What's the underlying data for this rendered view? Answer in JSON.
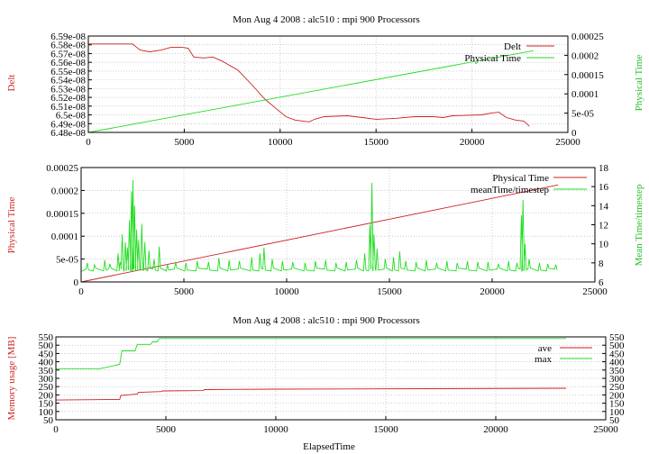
{
  "colors": {
    "red": "#cc2222",
    "green": "#22dd22",
    "grid": "#b0b0b0"
  },
  "chart_data": [
    {
      "type": "line",
      "title": "Mon Aug 4 2008 : alc510 : mpi 900 Processors",
      "ylabel": "Delt",
      "y2label": "Physical Time",
      "xlim": [
        0,
        25000
      ],
      "ylim": [
        6.48e-08,
        6.59e-08
      ],
      "y2lim": [
        0,
        0.00025
      ],
      "grid": true,
      "legend": "top-right",
      "xticks": [
        "0",
        "5000",
        "10000",
        "15000",
        "20000",
        "25000"
      ],
      "yticks": [
        "6.48e-08",
        "6.49e-08",
        "6.5e-08",
        "6.51e-08",
        "6.52e-08",
        "6.53e-08",
        "6.54e-08",
        "6.55e-08",
        "6.56e-08",
        "6.57e-08",
        "6.58e-08",
        "6.59e-08"
      ],
      "y2ticks": [
        "0",
        "5e-05",
        "0.0001",
        "0.00015",
        "0.0002",
        "0.00025"
      ],
      "series": [
        {
          "name": "Delt",
          "axis": "y",
          "color": "#cc2222",
          "x": [
            0,
            2300,
            2700,
            3200,
            3800,
            4300,
            4900,
            5200,
            5500,
            6000,
            6500,
            7000,
            7800,
            8500,
            9200,
            9800,
            10300,
            10800,
            11200,
            11500,
            11800,
            12300,
            13500,
            14300,
            15000,
            16000,
            17000,
            18000,
            18500,
            19000,
            20500,
            21000,
            21400,
            21800,
            22300,
            22700,
            23000
          ],
          "y": [
            6.581e-08,
            6.581e-08,
            6.574e-08,
            6.572e-08,
            6.574e-08,
            6.577e-08,
            6.577e-08,
            6.576e-08,
            6.566e-08,
            6.565e-08,
            6.566e-08,
            6.561e-08,
            6.551e-08,
            6.535e-08,
            6.518e-08,
            6.507e-08,
            6.498e-08,
            6.494e-08,
            6.493e-08,
            6.492e-08,
            6.495e-08,
            6.498e-08,
            6.499e-08,
            6.497e-08,
            6.495e-08,
            6.496e-08,
            6.498e-08,
            6.498e-08,
            6.497e-08,
            6.499e-08,
            6.5e-08,
            6.502e-08,
            6.503e-08,
            6.497e-08,
            6.494e-08,
            6.493e-08,
            6.487e-08
          ]
        },
        {
          "name": "Physical Time",
          "axis": "y2",
          "color": "#22dd22",
          "x": [
            0,
            23200
          ],
          "y": [
            0,
            0.000212
          ]
        }
      ]
    },
    {
      "type": "line",
      "title": "",
      "ylabel": "Physical Time",
      "y2label": "Mean Time/timestep",
      "xlim": [
        0,
        25000
      ],
      "ylim": [
        0,
        0.00025
      ],
      "y2lim": [
        6,
        18
      ],
      "grid": true,
      "legend": "top-right",
      "xticks": [
        "0",
        "5000",
        "10000",
        "15000",
        "20000",
        "25000"
      ],
      "yticks": [
        "0",
        "5e-05",
        "0.0001",
        "0.00015",
        "0.0002",
        "0.00025"
      ],
      "y2ticks": [
        "6",
        "8",
        "10",
        "12",
        "14",
        "16",
        "18"
      ],
      "series": [
        {
          "name": "Physical Time",
          "axis": "y",
          "color": "#cc2222",
          "x": [
            0,
            23200
          ],
          "y": [
            0,
            0.000212
          ]
        },
        {
          "name": "meanTime/timestep",
          "axis": "y2",
          "color": "#22dd22",
          "baseline": 7.1,
          "spikes": [
            [
              300,
              8.0
            ],
            [
              650,
              7.8
            ],
            [
              1150,
              8.3
            ],
            [
              1400,
              7.9
            ],
            [
              1800,
              9.0
            ],
            [
              1900,
              8.1
            ],
            [
              2000,
              11.0
            ],
            [
              2150,
              10.2
            ],
            [
              2250,
              9.6
            ],
            [
              2350,
              12.5
            ],
            [
              2450,
              15.5
            ],
            [
              2520,
              16.7
            ],
            [
              2600,
              14.0
            ],
            [
              2700,
              11.5
            ],
            [
              2800,
              10.4
            ],
            [
              2950,
              12.1
            ],
            [
              3100,
              10.2
            ],
            [
              3300,
              9.3
            ],
            [
              3550,
              8.4
            ],
            [
              3800,
              9.7
            ],
            [
              4200,
              7.8
            ],
            [
              4600,
              8.1
            ],
            [
              5100,
              8.0
            ],
            [
              5650,
              8.2
            ],
            [
              6200,
              8.1
            ],
            [
              6700,
              8.5
            ],
            [
              7200,
              8.3
            ],
            [
              7700,
              8.2
            ],
            [
              8300,
              8.6
            ],
            [
              8700,
              9.0
            ],
            [
              8900,
              9.6
            ],
            [
              9300,
              8.4
            ],
            [
              9800,
              8.2
            ],
            [
              10300,
              8.1
            ],
            [
              10900,
              8.0
            ],
            [
              11400,
              8.2
            ],
            [
              11900,
              8.3
            ],
            [
              12400,
              8.0
            ],
            [
              12900,
              8.1
            ],
            [
              13400,
              8.3
            ],
            [
              13800,
              9.0
            ],
            [
              14050,
              12.0
            ],
            [
              14150,
              16.4
            ],
            [
              14250,
              11.0
            ],
            [
              14400,
              9.5
            ],
            [
              14800,
              8.4
            ],
            [
              15200,
              8.6
            ],
            [
              15500,
              9.2
            ],
            [
              15800,
              8.2
            ],
            [
              16300,
              8.1
            ],
            [
              16800,
              8.3
            ],
            [
              17300,
              8.0
            ],
            [
              17800,
              8.2
            ],
            [
              18300,
              8.0
            ],
            [
              18800,
              8.2
            ],
            [
              19300,
              8.1
            ],
            [
              19800,
              8.1
            ],
            [
              20300,
              7.9
            ],
            [
              20800,
              8.2
            ],
            [
              21200,
              8.0
            ],
            [
              21420,
              13.0
            ],
            [
              21500,
              14.6
            ],
            [
              21600,
              10.0
            ],
            [
              21800,
              8.4
            ],
            [
              22300,
              8.0
            ],
            [
              22700,
              7.9
            ],
            [
              23100,
              7.8
            ]
          ]
        }
      ]
    },
    {
      "type": "line",
      "title": "Mon Aug 4 2008 : alc510 : mpi 900 Processors",
      "xlabel": "ElapsedTime",
      "ylabel": "Memory usage [MB]",
      "xlim": [
        0,
        25000
      ],
      "ylim": [
        50,
        550
      ],
      "y2lim": [
        50,
        550
      ],
      "grid": true,
      "legend": "top-right",
      "xticks": [
        "0",
        "5000",
        "10000",
        "15000",
        "20000",
        "25000"
      ],
      "yticks": [
        "50",
        "100",
        "150",
        "200",
        "250",
        "300",
        "350",
        "400",
        "450",
        "500",
        "550"
      ],
      "y2ticks": [
        "50",
        "100",
        "150",
        "200",
        "250",
        "300",
        "350",
        "400",
        "450",
        "500",
        "550"
      ],
      "series": [
        {
          "name": "ave",
          "color": "#cc2222",
          "x": [
            0,
            1800,
            2900,
            2950,
            3700,
            3750,
            4800,
            4850,
            6700,
            6750,
            10000,
            23200
          ],
          "y": [
            169,
            171,
            173,
            197,
            205,
            215,
            220,
            224,
            226,
            232,
            235,
            240
          ]
        },
        {
          "name": "max",
          "color": "#22dd22",
          "x": [
            0,
            1800,
            2000,
            2900,
            3000,
            3600,
            3700,
            4300,
            4400,
            4600,
            4700,
            10000,
            23200
          ],
          "y": [
            358,
            358,
            358,
            384,
            466,
            466,
            505,
            505,
            520,
            520,
            540,
            540,
            540
          ]
        }
      ]
    }
  ]
}
